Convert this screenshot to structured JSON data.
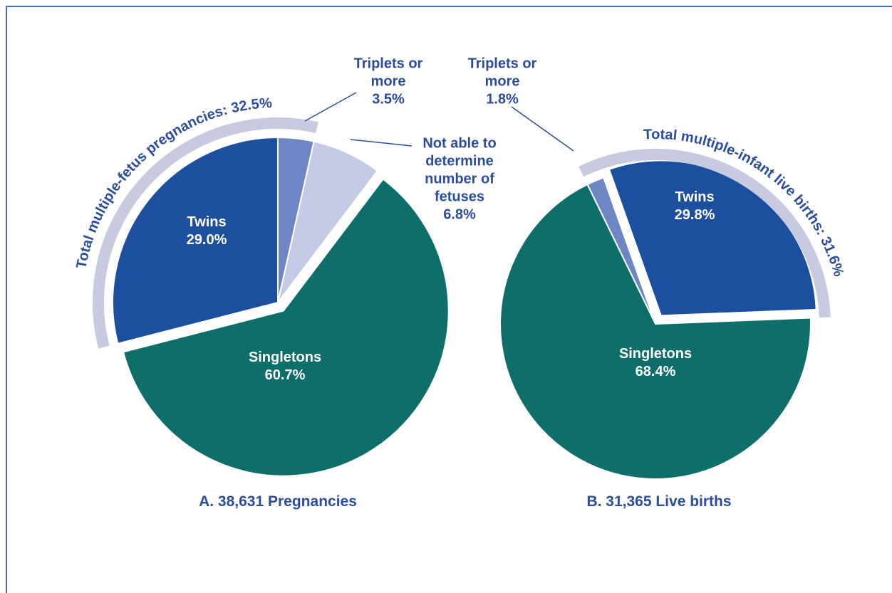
{
  "chart_data": [
    {
      "type": "pie",
      "title": "A. 38,631 Pregnancies",
      "annotation": "Total multiple-fetus pregnancies: 32.5%",
      "categories": [
        "Triplets or more",
        "Not able to determine number of fetuses",
        "Singletons",
        "Twins"
      ],
      "values": [
        3.5,
        6.8,
        60.7,
        29.0
      ],
      "value_labels": [
        "3.5%",
        "6.8%",
        "60.7%",
        "29.0%"
      ],
      "colors": [
        "#6f86c4",
        "#c5cbe6",
        "#0e6e6a",
        "#1d4f9f"
      ]
    },
    {
      "type": "pie",
      "title": "B. 31,365 Live births",
      "annotation": "Total multiple-infant live births: 31.6%",
      "categories": [
        "Triplets or more",
        "Twins",
        "Singletons"
      ],
      "values": [
        1.8,
        29.8,
        68.4
      ],
      "value_labels": [
        "1.8%",
        "29.8%",
        "68.4%"
      ],
      "colors": [
        "#6f86c4",
        "#1d4f9f",
        "#0e6e6a"
      ]
    }
  ]
}
